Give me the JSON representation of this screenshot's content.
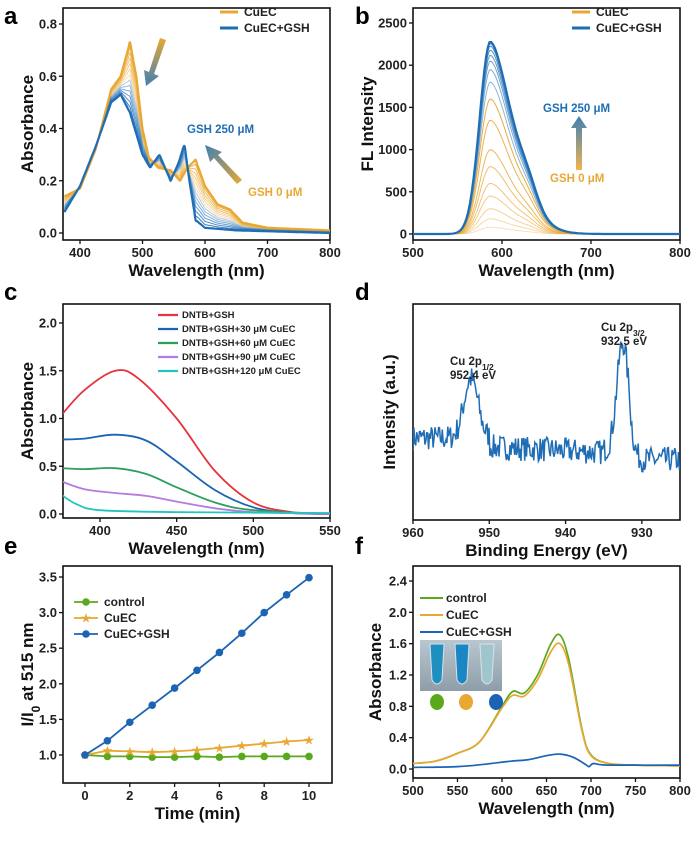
{
  "panels": {
    "a": "a",
    "b": "b",
    "c": "c",
    "d": "d",
    "e": "e",
    "f": "f"
  },
  "colors": {
    "orange": "#E8A833",
    "blue": "#1F6DB5",
    "red": "#E8323C",
    "green": "#2E9E5A",
    "purple": "#B57BE0",
    "cyan": "#22C4C0",
    "lime": "#5AA91C",
    "dblue": "#1B63B3"
  },
  "chart_data": [
    {
      "id": "a",
      "type": "line",
      "xlabel": "Wavelength (nm)",
      "ylabel": "Absorbance",
      "xlim": [
        375,
        800
      ],
      "ylim": [
        0,
        0.8
      ],
      "xticks": [
        400,
        500,
        600,
        700,
        800
      ],
      "yticks": [
        0.0,
        0.2,
        0.4,
        0.6,
        0.8
      ],
      "ytick_decimals": 1,
      "legend": [
        "CuEC",
        "CuEC+GSH"
      ],
      "legend_position": "top-right",
      "annotations": {
        "high": "GSH 250 μM",
        "low": "GSH 0 μM"
      },
      "n_curves": 14,
      "series": [
        {
          "name": "CuEC",
          "x": [
            375,
            400,
            425,
            450,
            465,
            480,
            490,
            500,
            510,
            525,
            545,
            560,
            572,
            585,
            600,
            620,
            640,
            660,
            700,
            800
          ],
          "y": [
            0.14,
            0.17,
            0.32,
            0.55,
            0.6,
            0.73,
            0.6,
            0.4,
            0.29,
            0.25,
            0.24,
            0.2,
            0.25,
            0.28,
            0.18,
            0.11,
            0.09,
            0.04,
            0.02,
            0.01
          ]
        },
        {
          "name": "CuEC+GSH",
          "x": [
            375,
            400,
            425,
            450,
            465,
            480,
            500,
            512,
            527,
            545,
            558,
            567,
            575,
            585,
            600,
            650,
            800
          ],
          "y": [
            0.08,
            0.18,
            0.33,
            0.5,
            0.53,
            0.46,
            0.3,
            0.25,
            0.3,
            0.2,
            0.27,
            0.34,
            0.2,
            0.05,
            0.02,
            0.01,
            0.0
          ]
        }
      ]
    },
    {
      "id": "b",
      "type": "line",
      "xlabel": "Wavelength (nm)",
      "ylabel": "FL Intensity",
      "xlim": [
        500,
        800
      ],
      "ylim": [
        0,
        2500
      ],
      "xticks": [
        500,
        600,
        700,
        800
      ],
      "yticks": [
        0,
        500,
        1000,
        1500,
        2000,
        2500
      ],
      "ytick_decimals": 0,
      "legend": [
        "CuEC",
        "CuEC+GSH"
      ],
      "legend_position": "top-right",
      "annotations": {
        "high": "GSH 250 μM",
        "low": "GSH 0 μM"
      },
      "peak_wavelength": 587,
      "peak_intensities": [
        80,
        180,
        300,
        450,
        600,
        800,
        1000,
        1350,
        1600,
        1800,
        1950,
        2050,
        2120,
        2180,
        2230,
        2260,
        2280
      ]
    },
    {
      "id": "c",
      "type": "line",
      "xlabel": "Wavelength (nm)",
      "ylabel": "Absorbance",
      "xlim": [
        375,
        550
      ],
      "ylim": [
        0,
        2.2
      ],
      "xticks": [
        400,
        450,
        500,
        550
      ],
      "yticks": [
        0.0,
        0.5,
        1.0,
        1.5,
        2.0
      ],
      "ytick_decimals": 1,
      "legend_position": "top-right",
      "series": [
        {
          "name": "DNTB+GSH",
          "color": "red",
          "x": [
            375,
            390,
            410,
            425,
            450,
            475,
            500,
            525,
            550
          ],
          "y": [
            1.04,
            1.3,
            1.5,
            1.42,
            1.0,
            0.45,
            0.12,
            0.02,
            0.0
          ]
        },
        {
          "name": "DNTB+GSH+30 μM CuEC",
          "color": "dblue",
          "x": [
            375,
            390,
            410,
            430,
            450,
            475,
            500,
            525,
            550
          ],
          "y": [
            0.78,
            0.79,
            0.83,
            0.77,
            0.55,
            0.25,
            0.07,
            0.01,
            0.0
          ]
        },
        {
          "name": "DNTB+GSH+60 μM CuEC",
          "color": "green",
          "x": [
            375,
            390,
            410,
            430,
            450,
            475,
            500,
            550
          ],
          "y": [
            0.48,
            0.47,
            0.48,
            0.42,
            0.28,
            0.12,
            0.04,
            0.0
          ]
        },
        {
          "name": "DNTB+GSH+90 μM CuEC",
          "color": "purple",
          "x": [
            375,
            390,
            410,
            430,
            450,
            475,
            500,
            550
          ],
          "y": [
            0.34,
            0.26,
            0.22,
            0.19,
            0.13,
            0.06,
            0.02,
            0.0
          ]
        },
        {
          "name": "DNTB+GSH+120 μM CuEC",
          "color": "cyan",
          "x": [
            375,
            385,
            400,
            450,
            550
          ],
          "y": [
            0.2,
            0.1,
            0.04,
            0.02,
            0.01
          ]
        }
      ]
    },
    {
      "id": "d",
      "type": "line",
      "xlabel": "Binding Energy (eV)",
      "ylabel": "Intensity (a.u.)",
      "xlim": [
        960,
        925
      ],
      "xticks": [
        960,
        950,
        940,
        930
      ],
      "peaks": [
        {
          "name": "Cu 2p",
          "sub": "1/2",
          "energy_label": "952.4 eV",
          "energy": 952.4,
          "relative_height": 0.33
        },
        {
          "name": "Cu 2p",
          "sub": "3/2",
          "energy_label": "932.5 eV",
          "energy": 932.5,
          "relative_height": 0.6
        }
      ]
    },
    {
      "id": "e",
      "type": "line",
      "xlabel": "Time (min)",
      "ylabel": "I/I",
      "ylabel_sub": "0",
      "ylabel_tail": " at 515 nm",
      "xlim": [
        -1,
        11
      ],
      "ylim": [
        0.75,
        3.75
      ],
      "xticks": [
        0,
        2,
        4,
        6,
        8,
        10
      ],
      "yticks": [
        1.0,
        1.5,
        2.0,
        2.5,
        3.0,
        3.5
      ],
      "ytick_decimals": 1,
      "legend_position": "top-left",
      "x": [
        0,
        1,
        2,
        3,
        4,
        5,
        6,
        7,
        8,
        9,
        10
      ],
      "series": [
        {
          "name": "control",
          "color": "lime",
          "marker": "circle",
          "y": [
            1.0,
            0.98,
            0.98,
            0.97,
            0.97,
            0.98,
            0.97,
            0.98,
            0.98,
            0.98,
            0.98
          ]
        },
        {
          "name": "CuEC",
          "color": "orange",
          "marker": "star",
          "y": [
            1.0,
            1.06,
            1.05,
            1.04,
            1.05,
            1.07,
            1.1,
            1.13,
            1.16,
            1.19,
            1.21
          ]
        },
        {
          "name": "CuEC+GSH",
          "color": "dblue",
          "marker": "circle",
          "y": [
            1.0,
            1.2,
            1.46,
            1.7,
            1.94,
            2.19,
            2.44,
            2.71,
            3.0,
            3.25,
            3.49
          ]
        }
      ]
    },
    {
      "id": "f",
      "type": "line",
      "xlabel": "Wavelength (nm)",
      "ylabel": "Absorbance",
      "xlim": [
        500,
        800
      ],
      "ylim": [
        0,
        2.4
      ],
      "xticks": [
        500,
        550,
        600,
        650,
        700,
        750,
        800
      ],
      "yticks": [
        0.0,
        0.4,
        0.8,
        1.2,
        1.6,
        2.0,
        2.4
      ],
      "ytick_decimals": 1,
      "legend_position": "top-left",
      "series": [
        {
          "name": "control",
          "color": "lime",
          "x": [
            500,
            525,
            550,
            575,
            600,
            612,
            625,
            640,
            655,
            665,
            675,
            690,
            700,
            720,
            750,
            800
          ],
          "y": [
            0.07,
            0.1,
            0.2,
            0.35,
            0.8,
            0.99,
            0.97,
            1.2,
            1.6,
            1.71,
            1.4,
            0.5,
            0.18,
            0.07,
            0.05,
            0.04
          ]
        },
        {
          "name": "CuEC",
          "color": "orange",
          "x": [
            500,
            525,
            550,
            575,
            600,
            612,
            625,
            640,
            655,
            665,
            675,
            690,
            700,
            720,
            750,
            800
          ],
          "y": [
            0.07,
            0.1,
            0.2,
            0.35,
            0.78,
            0.94,
            0.93,
            1.14,
            1.5,
            1.6,
            1.33,
            0.48,
            0.17,
            0.07,
            0.05,
            0.04
          ]
        },
        {
          "name": "CuEC+GSH",
          "color": "dblue",
          "x": [
            500,
            550,
            580,
            610,
            630,
            650,
            665,
            680,
            695,
            698,
            703,
            720,
            800
          ],
          "y": [
            0.02,
            0.03,
            0.06,
            0.1,
            0.12,
            0.17,
            0.19,
            0.15,
            0.05,
            0.03,
            0.07,
            0.05,
            0.05
          ]
        }
      ]
    }
  ]
}
